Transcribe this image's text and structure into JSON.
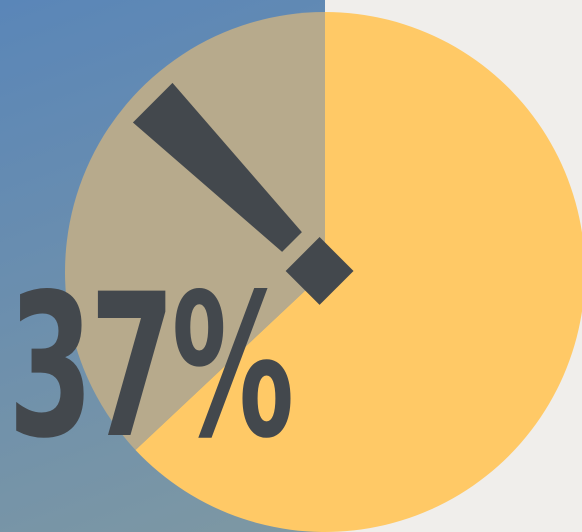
{
  "colors": {
    "background_left_top": "#5a86b8",
    "background_left_bottom": "#7e98a3",
    "background_right": "#f0eeeb",
    "highlight_slice": "#ffc966",
    "remaining_slice": "#b7aa8c",
    "icon": "#43484d",
    "text": "#43484d"
  },
  "chart_data": {
    "type": "pie",
    "percent_label": "37%",
    "slices": [
      {
        "value": 63,
        "color": "#ffc966"
      },
      {
        "value": 37,
        "color": "#b7aa8c"
      }
    ]
  },
  "icon": {
    "name": "exclamation-icon"
  }
}
